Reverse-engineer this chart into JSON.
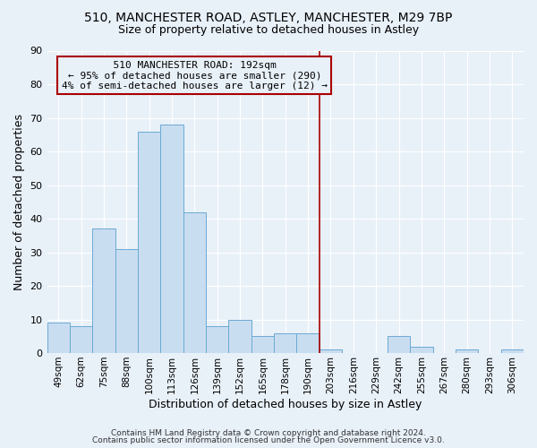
{
  "title_line1": "510, MANCHESTER ROAD, ASTLEY, MANCHESTER, M29 7BP",
  "title_line2": "Size of property relative to detached houses in Astley",
  "xlabel": "Distribution of detached houses by size in Astley",
  "ylabel": "Number of detached properties",
  "footer_line1": "Contains HM Land Registry data © Crown copyright and database right 2024.",
  "footer_line2": "Contains public sector information licensed under the Open Government Licence v3.0.",
  "bin_labels": [
    "49sqm",
    "62sqm",
    "75sqm",
    "88sqm",
    "100sqm",
    "113sqm",
    "126sqm",
    "139sqm",
    "152sqm",
    "165sqm",
    "178sqm",
    "190sqm",
    "203sqm",
    "216sqm",
    "229sqm",
    "242sqm",
    "255sqm",
    "267sqm",
    "280sqm",
    "293sqm",
    "306sqm"
  ],
  "bar_heights": [
    9,
    8,
    37,
    31,
    66,
    68,
    42,
    8,
    10,
    5,
    6,
    6,
    1,
    0,
    0,
    5,
    2,
    0,
    1,
    0,
    1
  ],
  "bar_color": "#c9ddf0",
  "bar_edge_color": "#6aaad4",
  "annotation_title": "510 MANCHESTER ROAD: 192sqm",
  "annotation_line2": "← 95% of detached houses are smaller (290)",
  "annotation_line3": "4% of semi-detached houses are larger (12) →",
  "vline_index": 11.5,
  "vline_color": "#aa0000",
  "ylim": [
    0,
    90
  ],
  "yticks": [
    0,
    10,
    20,
    30,
    40,
    50,
    60,
    70,
    80,
    90
  ],
  "background_color": "#e8f0f8",
  "grid_color": "#d0dce8"
}
